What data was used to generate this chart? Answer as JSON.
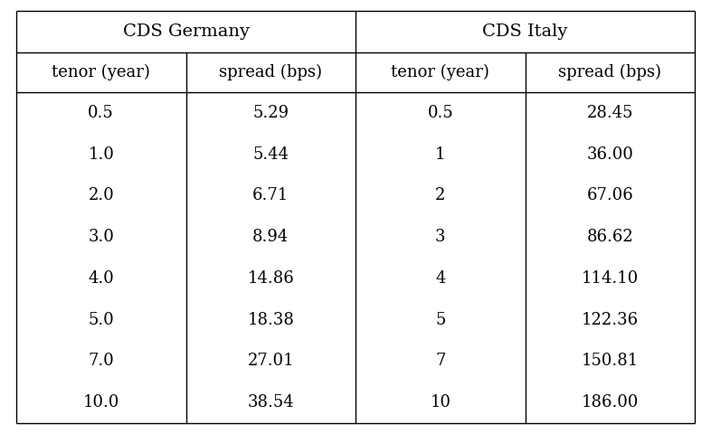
{
  "germany_tenors": [
    "0.5",
    "1.0",
    "2.0",
    "3.0",
    "4.0",
    "5.0",
    "7.0",
    "10.0"
  ],
  "germany_spreads": [
    "5.29",
    "5.44",
    "6.71",
    "8.94",
    "14.86",
    "18.38",
    "27.01",
    "38.54"
  ],
  "italy_tenors": [
    "0.5",
    "1",
    "2",
    "3",
    "4",
    "5",
    "7",
    "10"
  ],
  "italy_spreads": [
    "28.45",
    "36.00",
    "67.06",
    "86.62",
    "114.10",
    "122.36",
    "150.81",
    "186.00"
  ],
  "header1": "CDS Germany",
  "header2": "CDS Italy",
  "col_headers": [
    "tenor (year)",
    "spread (bps)",
    "tenor (year)",
    "spread (bps)"
  ],
  "bg_color": "#ffffff",
  "text_color": "#000000",
  "font_size": 13,
  "header_font_size": 14
}
